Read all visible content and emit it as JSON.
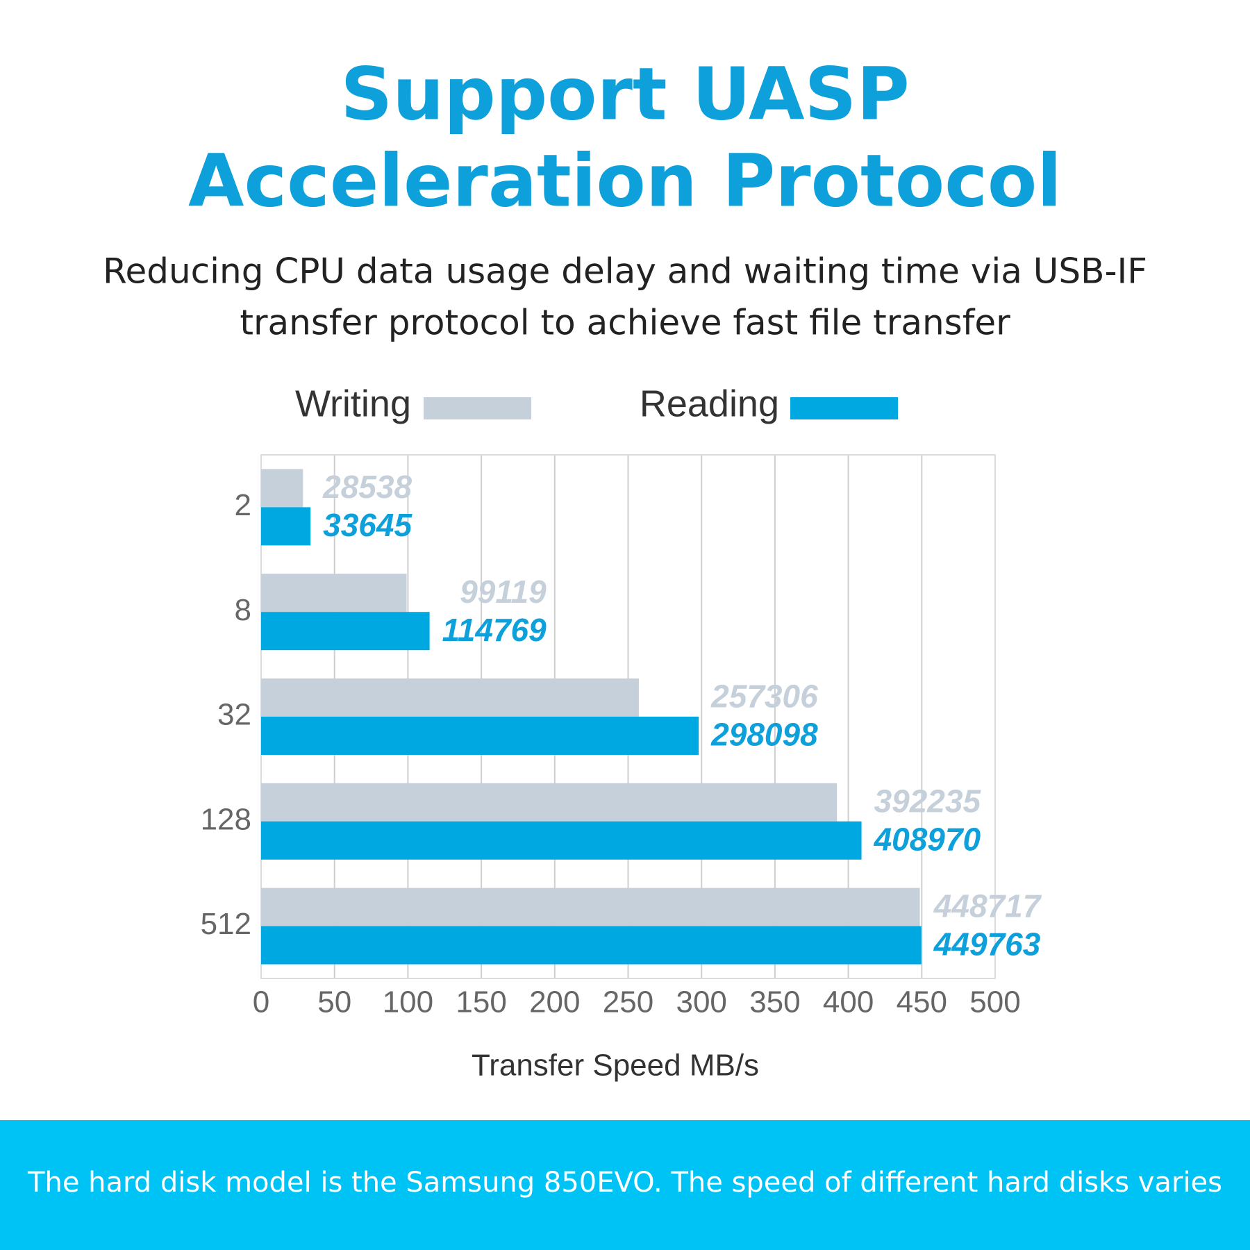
{
  "chart_data": {
    "type": "barh",
    "title": [
      "Support UASP",
      "Acceleration Protocol"
    ],
    "subtitle": [
      "Reducing CPU data usage delay and waiting time via USB-IF",
      "transfer protocol to achieve fast file transfer"
    ],
    "categories": [
      "2",
      "8",
      "32",
      "128",
      "512"
    ],
    "series": [
      {
        "name": "Writing",
        "color": "#c5d0da",
        "label_color": "#c5d0da",
        "values": [
          28.538,
          99.119,
          257.306,
          392.235,
          448.717
        ],
        "value_labels": [
          "28538",
          "99119",
          "257306",
          "392235",
          "448717"
        ]
      },
      {
        "name": "Reading",
        "color": "#00a8e1",
        "label_color": "#0ea0da",
        "values": [
          33.645,
          114.769,
          298.098,
          408.97,
          449.763
        ],
        "value_labels": [
          "33645",
          "114769",
          "298098",
          "408970",
          "449763"
        ]
      }
    ],
    "xlim": [
      0,
      500
    ],
    "xticks": [
      0,
      50,
      100,
      150,
      200,
      250,
      300,
      350,
      400,
      450,
      500
    ],
    "xlabel": "Transfer Speed MB/s",
    "grid": true,
    "legend": "top",
    "footnote": "The hard disk model is the Samsung 850EVO. The speed of different hard disks varies"
  }
}
